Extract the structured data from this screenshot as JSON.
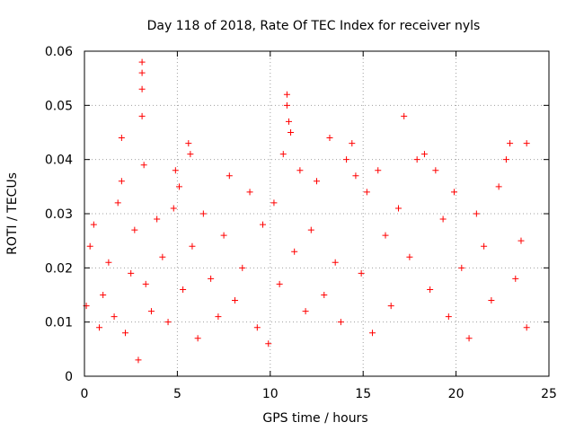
{
  "chart_data": {
    "type": "scatter",
    "title": "Day 118 of 2018, Rate Of TEC Index for receiver nyls",
    "xlabel": "GPS time / hours",
    "ylabel": "ROTI / TECUs",
    "xlim": [
      0,
      25
    ],
    "ylim": [
      0,
      0.06
    ],
    "x_ticks": [
      0,
      5,
      10,
      15,
      20,
      25
    ],
    "x_tick_labels": [
      "0",
      "5",
      "10",
      "15",
      "20",
      "25"
    ],
    "y_ticks": [
      0,
      0.01,
      0.02,
      0.03,
      0.04,
      0.05,
      0.06
    ],
    "y_tick_labels": [
      "0",
      "0.01",
      "0.02",
      "0.03",
      "0.04",
      "0.05",
      "0.06"
    ],
    "grid": true,
    "marker": "plus",
    "color": "#ff0000",
    "series": [
      {
        "name": "ROTI",
        "points": [
          [
            0.1,
            0.013
          ],
          [
            0.3,
            0.024
          ],
          [
            0.5,
            0.028
          ],
          [
            0.8,
            0.009
          ],
          [
            1.0,
            0.015
          ],
          [
            1.3,
            0.021
          ],
          [
            1.6,
            0.011
          ],
          [
            1.8,
            0.032
          ],
          [
            2.0,
            0.044
          ],
          [
            2.0,
            0.036
          ],
          [
            2.2,
            0.008
          ],
          [
            2.5,
            0.019
          ],
          [
            2.7,
            0.027
          ],
          [
            2.9,
            0.003
          ],
          [
            3.1,
            0.058
          ],
          [
            3.1,
            0.056
          ],
          [
            3.1,
            0.053
          ],
          [
            3.1,
            0.048
          ],
          [
            3.2,
            0.039
          ],
          [
            3.3,
            0.017
          ],
          [
            3.6,
            0.012
          ],
          [
            3.9,
            0.029
          ],
          [
            4.2,
            0.022
          ],
          [
            4.5,
            0.01
          ],
          [
            4.8,
            0.031
          ],
          [
            4.9,
            0.038
          ],
          [
            5.1,
            0.035
          ],
          [
            5.3,
            0.016
          ],
          [
            5.6,
            0.043
          ],
          [
            5.7,
            0.041
          ],
          [
            5.8,
            0.024
          ],
          [
            6.1,
            0.007
          ],
          [
            6.4,
            0.03
          ],
          [
            6.8,
            0.018
          ],
          [
            7.2,
            0.011
          ],
          [
            7.5,
            0.026
          ],
          [
            7.8,
            0.037
          ],
          [
            8.1,
            0.014
          ],
          [
            8.5,
            0.02
          ],
          [
            8.9,
            0.034
          ],
          [
            9.3,
            0.009
          ],
          [
            9.6,
            0.028
          ],
          [
            9.9,
            0.006
          ],
          [
            10.2,
            0.032
          ],
          [
            10.5,
            0.017
          ],
          [
            10.7,
            0.041
          ],
          [
            10.9,
            0.052
          ],
          [
            10.9,
            0.05
          ],
          [
            11.0,
            0.047
          ],
          [
            11.1,
            0.045
          ],
          [
            11.3,
            0.023
          ],
          [
            11.6,
            0.038
          ],
          [
            11.9,
            0.012
          ],
          [
            12.2,
            0.027
          ],
          [
            12.5,
            0.036
          ],
          [
            12.9,
            0.015
          ],
          [
            13.2,
            0.044
          ],
          [
            13.5,
            0.021
          ],
          [
            13.8,
            0.01
          ],
          [
            14.1,
            0.04
          ],
          [
            14.4,
            0.043
          ],
          [
            14.6,
            0.037
          ],
          [
            14.9,
            0.019
          ],
          [
            15.2,
            0.034
          ],
          [
            15.5,
            0.008
          ],
          [
            15.8,
            0.038
          ],
          [
            16.2,
            0.026
          ],
          [
            16.5,
            0.013
          ],
          [
            16.9,
            0.031
          ],
          [
            17.2,
            0.048
          ],
          [
            17.5,
            0.022
          ],
          [
            17.9,
            0.04
          ],
          [
            18.3,
            0.041
          ],
          [
            18.6,
            0.016
          ],
          [
            18.9,
            0.038
          ],
          [
            19.3,
            0.029
          ],
          [
            19.6,
            0.011
          ],
          [
            19.9,
            0.034
          ],
          [
            20.3,
            0.02
          ],
          [
            20.7,
            0.007
          ],
          [
            21.1,
            0.03
          ],
          [
            21.5,
            0.024
          ],
          [
            21.9,
            0.014
          ],
          [
            22.3,
            0.035
          ],
          [
            22.7,
            0.04
          ],
          [
            22.9,
            0.043
          ],
          [
            23.2,
            0.018
          ],
          [
            23.5,
            0.025
          ],
          [
            23.8,
            0.043
          ],
          [
            23.8,
            0.009
          ]
        ]
      }
    ]
  }
}
